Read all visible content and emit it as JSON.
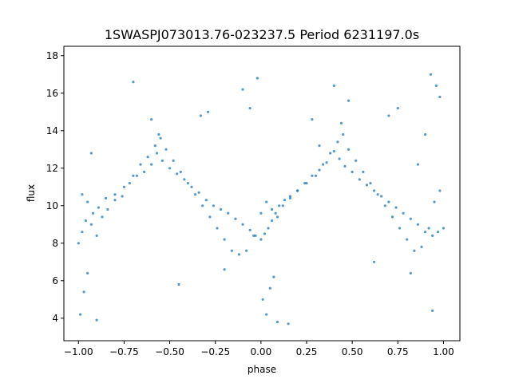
{
  "chart_data": {
    "type": "scatter",
    "title": "1SWASPJ073013.76-023237.5 Period 6231197.0s",
    "xlabel": "phase",
    "ylabel": "flux",
    "xlim": [
      -1.08,
      1.09
    ],
    "ylim": [
      2.8,
      18.5
    ],
    "xticks": [
      -1.0,
      -0.75,
      -0.5,
      -0.25,
      0.0,
      0.25,
      0.5,
      0.75,
      1.0
    ],
    "xtick_labels": [
      "−1.00",
      "−0.75",
      "−0.50",
      "−0.25",
      "0.00",
      "0.25",
      "0.50",
      "0.75",
      "1.00"
    ],
    "yticks": [
      4,
      6,
      8,
      10,
      12,
      14,
      16,
      18
    ],
    "ytick_labels": [
      "4",
      "6",
      "8",
      "10",
      "12",
      "14",
      "16",
      "18"
    ],
    "grid": false,
    "point_color": "#1f77b4",
    "series": [
      {
        "x": [
          -1.0,
          -0.98,
          -0.96,
          -0.93,
          -0.9,
          -0.87,
          -0.84,
          -0.8,
          -0.76,
          -0.72,
          -0.68,
          -0.64,
          -0.6,
          -0.57,
          -0.54,
          -0.5,
          -0.46,
          -0.42,
          -0.38,
          -0.34,
          -0.3,
          -0.26,
          -0.22,
          -0.18,
          -0.14,
          -0.1,
          -0.06,
          -0.03,
          0.0,
          0.02,
          0.04,
          0.06,
          0.08,
          0.1,
          0.13,
          0.16,
          0.2,
          0.24,
          0.28,
          0.32,
          0.36,
          0.4,
          0.43,
          0.46,
          0.5,
          0.54,
          0.58,
          0.62,
          0.66,
          0.7,
          0.74,
          0.78,
          0.82,
          0.86,
          0.9,
          0.94,
          0.97,
          1.0
        ],
        "y": [
          8.0,
          8.6,
          9.2,
          9.0,
          8.4,
          9.4,
          9.8,
          10.3,
          10.5,
          11.2,
          11.6,
          11.8,
          12.2,
          12.8,
          12.4,
          12.0,
          11.7,
          11.4,
          11.0,
          10.7,
          10.3,
          10.0,
          9.8,
          9.6,
          9.3,
          9.0,
          8.7,
          8.4,
          8.2,
          8.5,
          8.8,
          9.2,
          9.6,
          10.0,
          10.3,
          10.5,
          10.8,
          11.2,
          11.6,
          11.9,
          12.3,
          12.9,
          12.5,
          12.1,
          11.8,
          11.4,
          11.1,
          10.8,
          10.5,
          10.2,
          9.9,
          9.6,
          9.3,
          9.0,
          8.6,
          8.4,
          8.6,
          8.8
        ]
      },
      {
        "x": [
          -0.98,
          -0.95,
          -0.92,
          -0.89,
          -0.85,
          -0.8,
          -0.75,
          -0.7,
          -0.66,
          -0.62,
          -0.58,
          -0.55,
          -0.52,
          -0.48,
          -0.44,
          -0.4,
          -0.36,
          -0.32,
          -0.28,
          -0.24,
          -0.2,
          -0.16,
          -0.12,
          -0.08,
          -0.04,
          0.0,
          0.03,
          0.06,
          0.09,
          0.12,
          0.16,
          0.2,
          0.25,
          0.3,
          0.34,
          0.38,
          0.42,
          0.45,
          0.48,
          0.52,
          0.56,
          0.6,
          0.64,
          0.68,
          0.72,
          0.76,
          0.8,
          0.84,
          0.88,
          0.92,
          0.95,
          0.98
        ],
        "y": [
          10.6,
          10.2,
          9.6,
          9.9,
          10.4,
          10.6,
          11.0,
          11.6,
          12.2,
          12.6,
          13.2,
          13.6,
          13.0,
          12.4,
          11.8,
          11.2,
          10.6,
          10.0,
          9.4,
          8.8,
          8.2,
          7.6,
          7.4,
          7.6,
          8.4,
          9.6,
          10.2,
          9.8,
          9.4,
          10.0,
          10.4,
          10.8,
          11.2,
          11.6,
          12.2,
          12.8,
          13.4,
          13.8,
          13.0,
          12.4,
          11.8,
          11.2,
          10.6,
          10.0,
          9.4,
          8.8,
          8.2,
          7.6,
          7.8,
          8.8,
          10.2,
          10.8
        ]
      },
      {
        "x": [
          -0.99,
          -0.97,
          -0.95,
          -0.93,
          -0.6,
          -0.56,
          -0.33,
          -0.29,
          -0.1,
          -0.06,
          -0.02,
          0.01,
          0.03,
          0.05,
          0.07,
          0.09,
          0.28,
          0.32,
          0.44,
          0.48,
          0.7,
          0.75,
          0.86,
          0.9,
          0.93,
          0.96,
          0.98,
          -0.9,
          -0.7,
          -0.45,
          -0.2,
          0.15,
          0.4,
          0.62,
          0.82,
          0.94
        ],
        "y": [
          4.2,
          5.4,
          6.4,
          12.8,
          14.6,
          13.8,
          14.8,
          15.0,
          16.2,
          15.2,
          16.8,
          5.0,
          4.2,
          5.6,
          6.2,
          3.8,
          14.6,
          13.2,
          14.4,
          15.6,
          14.8,
          15.2,
          12.2,
          13.8,
          17.0,
          16.4,
          15.8,
          3.9,
          16.6,
          5.8,
          6.6,
          3.7,
          16.4,
          7.0,
          6.4,
          4.4
        ]
      }
    ]
  }
}
